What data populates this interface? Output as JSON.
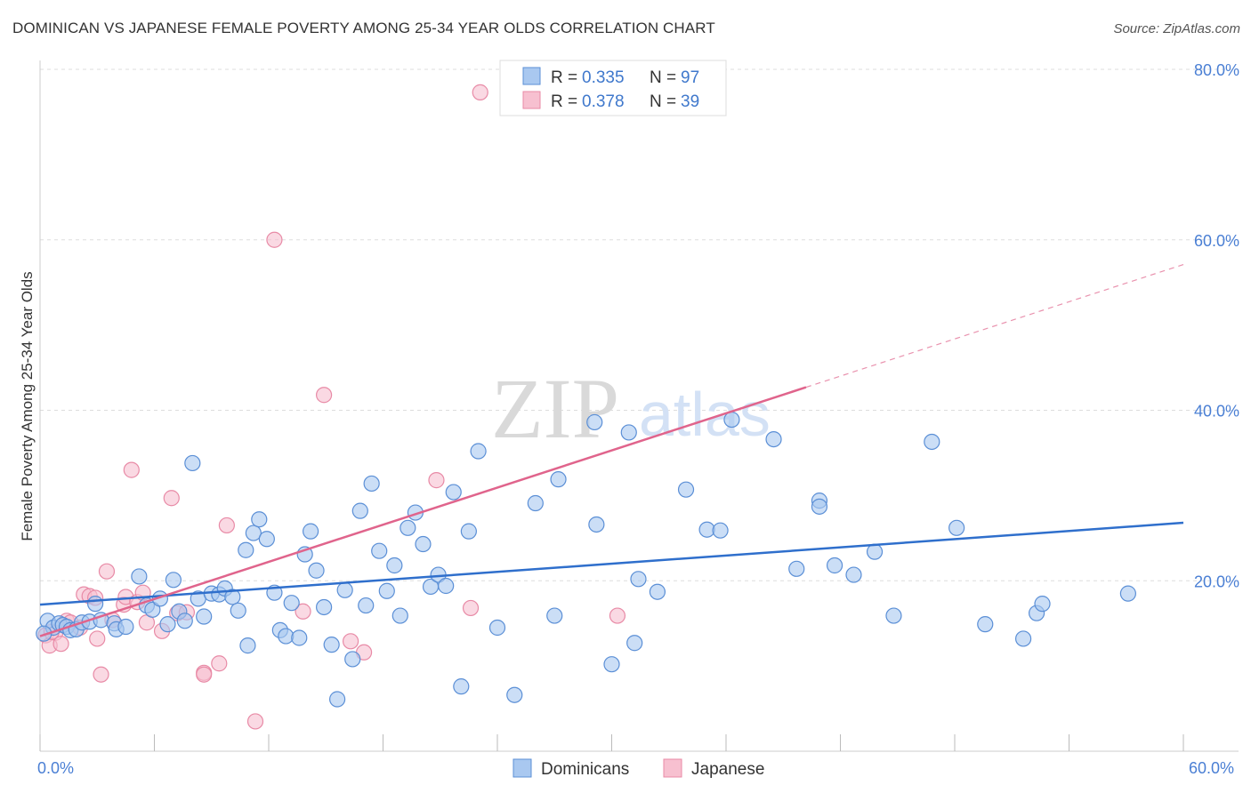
{
  "title": "DOMINICAN VS JAPANESE FEMALE POVERTY AMONG 25-34 YEAR OLDS CORRELATION CHART",
  "source": "Source: ZipAtlas.com",
  "watermark": {
    "zip": "ZIP",
    "atlas": "atlas"
  },
  "legend": {
    "rows": [
      {
        "r_label": "R =",
        "r_value": "0.335",
        "n_label": "N =",
        "n_value": "97"
      },
      {
        "r_label": "R =",
        "r_value": "0.378",
        "n_label": "N =",
        "n_value": "39"
      }
    ]
  },
  "bottom_legend": {
    "dominicans": "Dominicans",
    "japanese": "Japanese"
  },
  "colors": {
    "dominican_fill": "#a9c8f0",
    "dominican_stroke": "#5b8fd6",
    "dominican_line": "#2f6fcc",
    "japanese_fill": "#f7c0d0",
    "japanese_stroke": "#e88aa6",
    "japanese_line": "#e0648c",
    "tick_label": "#4a7fd4",
    "grid": "#dddddd"
  },
  "chart_data": {
    "type": "scatter",
    "title": "DOMINICAN VS JAPANESE FEMALE POVERTY AMONG 25-34 YEAR OLDS CORRELATION CHART",
    "xlabel": "",
    "ylabel": "Female Poverty Among 25-34 Year Olds",
    "xlim": [
      0,
      60
    ],
    "ylim": [
      0,
      80
    ],
    "x_tick_labels": [
      "0.0%",
      "60.0%"
    ],
    "y_ticks": [
      20,
      40,
      60,
      80
    ],
    "y_tick_labels": [
      "20.0%",
      "40.0%",
      "60.0%",
      "80.0%"
    ],
    "grid": true,
    "legend_placement": "top-center",
    "series": [
      {
        "name": "Dominicans",
        "r": 0.335,
        "n": 97,
        "trend": {
          "x": [
            0,
            60
          ],
          "y": [
            17.2,
            26.8
          ],
          "dashed_to": 60
        },
        "points": [
          [
            0.4,
            15.3
          ],
          [
            0.7,
            14.5
          ],
          [
            1.0,
            15.0
          ],
          [
            1.2,
            14.8
          ],
          [
            1.4,
            14.6
          ],
          [
            1.6,
            14.2
          ],
          [
            1.9,
            14.3
          ],
          [
            2.2,
            15.1
          ],
          [
            2.6,
            15.2
          ],
          [
            3.2,
            15.4
          ],
          [
            3.9,
            15.0
          ],
          [
            4.0,
            14.3
          ],
          [
            2.9,
            17.3
          ],
          [
            4.5,
            14.6
          ],
          [
            5.2,
            20.5
          ],
          [
            5.6,
            17.1
          ],
          [
            5.9,
            16.6
          ],
          [
            6.3,
            17.9
          ],
          [
            6.7,
            14.9
          ],
          [
            7.0,
            20.1
          ],
          [
            7.3,
            16.4
          ],
          [
            7.6,
            15.3
          ],
          [
            8.0,
            33.8
          ],
          [
            8.3,
            17.9
          ],
          [
            8.6,
            15.8
          ],
          [
            9.0,
            18.5
          ],
          [
            9.4,
            18.4
          ],
          [
            9.7,
            19.1
          ],
          [
            10.1,
            18.1
          ],
          [
            10.4,
            16.5
          ],
          [
            10.8,
            23.6
          ],
          [
            10.9,
            12.4
          ],
          [
            11.2,
            25.6
          ],
          [
            11.5,
            27.2
          ],
          [
            11.9,
            24.9
          ],
          [
            12.3,
            18.6
          ],
          [
            12.6,
            14.2
          ],
          [
            12.9,
            13.5
          ],
          [
            13.2,
            17.4
          ],
          [
            13.6,
            13.3
          ],
          [
            13.9,
            23.1
          ],
          [
            14.2,
            25.8
          ],
          [
            14.5,
            21.2
          ],
          [
            14.9,
            16.9
          ],
          [
            15.3,
            12.5
          ],
          [
            15.6,
            6.1
          ],
          [
            16.0,
            18.9
          ],
          [
            16.4,
            10.8
          ],
          [
            16.8,
            28.2
          ],
          [
            17.1,
            17.1
          ],
          [
            17.4,
            31.4
          ],
          [
            17.8,
            23.5
          ],
          [
            18.2,
            18.8
          ],
          [
            18.6,
            21.8
          ],
          [
            18.9,
            15.9
          ],
          [
            19.3,
            26.2
          ],
          [
            19.7,
            28.0
          ],
          [
            20.1,
            24.3
          ],
          [
            20.5,
            19.3
          ],
          [
            20.9,
            20.7
          ],
          [
            21.3,
            19.4
          ],
          [
            21.7,
            30.4
          ],
          [
            22.1,
            7.6
          ],
          [
            22.5,
            25.8
          ],
          [
            23.0,
            35.2
          ],
          [
            24.0,
            14.5
          ],
          [
            24.9,
            6.6
          ],
          [
            26.0,
            29.1
          ],
          [
            27.0,
            15.9
          ],
          [
            27.2,
            31.9
          ],
          [
            29.1,
            38.6
          ],
          [
            29.2,
            26.6
          ],
          [
            30.0,
            10.2
          ],
          [
            30.9,
            37.4
          ],
          [
            31.2,
            12.7
          ],
          [
            31.4,
            20.2
          ],
          [
            32.4,
            18.7
          ],
          [
            33.9,
            30.7
          ],
          [
            35.0,
            26.0
          ],
          [
            35.7,
            25.9
          ],
          [
            36.3,
            38.9
          ],
          [
            38.5,
            36.6
          ],
          [
            39.7,
            21.4
          ],
          [
            40.9,
            29.4
          ],
          [
            40.9,
            28.7
          ],
          [
            41.7,
            21.8
          ],
          [
            42.7,
            20.7
          ],
          [
            43.8,
            23.4
          ],
          [
            44.8,
            15.9
          ],
          [
            46.8,
            36.3
          ],
          [
            48.1,
            26.2
          ],
          [
            49.6,
            14.9
          ],
          [
            51.6,
            13.2
          ],
          [
            52.3,
            16.2
          ],
          [
            52.6,
            17.3
          ],
          [
            57.1,
            18.5
          ],
          [
            0.2,
            13.8
          ]
        ]
      },
      {
        "name": "Japanese",
        "r": 0.378,
        "n": 39,
        "trend": {
          "x": [
            0,
            40.2
          ],
          "y": [
            13.5,
            42.7
          ],
          "dashed_to": 60,
          "dashed_y_end": 57.1
        },
        "points": [
          [
            0.3,
            13.6
          ],
          [
            0.5,
            12.4
          ],
          [
            0.8,
            13.9
          ],
          [
            1.1,
            12.6
          ],
          [
            1.4,
            15.3
          ],
          [
            1.6,
            15.1
          ],
          [
            2.1,
            14.5
          ],
          [
            2.3,
            18.4
          ],
          [
            2.6,
            18.2
          ],
          [
            2.9,
            18.0
          ],
          [
            3.0,
            13.2
          ],
          [
            3.2,
            9.0
          ],
          [
            3.5,
            21.1
          ],
          [
            3.8,
            15.4
          ],
          [
            4.4,
            17.2
          ],
          [
            4.5,
            18.1
          ],
          [
            4.8,
            33.0
          ],
          [
            5.1,
            17.5
          ],
          [
            5.4,
            18.6
          ],
          [
            5.6,
            15.1
          ],
          [
            6.4,
            14.1
          ],
          [
            6.9,
            29.7
          ],
          [
            7.2,
            16.2
          ],
          [
            7.7,
            16.3
          ],
          [
            8.6,
            9.2
          ],
          [
            8.6,
            9.0
          ],
          [
            9.4,
            10.3
          ],
          [
            9.8,
            26.5
          ],
          [
            11.3,
            3.5
          ],
          [
            12.3,
            60.0
          ],
          [
            13.8,
            16.4
          ],
          [
            14.9,
            41.8
          ],
          [
            16.3,
            12.9
          ],
          [
            17.0,
            11.6
          ],
          [
            20.8,
            31.8
          ],
          [
            22.6,
            16.8
          ],
          [
            23.1,
            77.3
          ],
          [
            30.3,
            15.9
          ],
          [
            0.6,
            14.0
          ]
        ]
      }
    ]
  }
}
